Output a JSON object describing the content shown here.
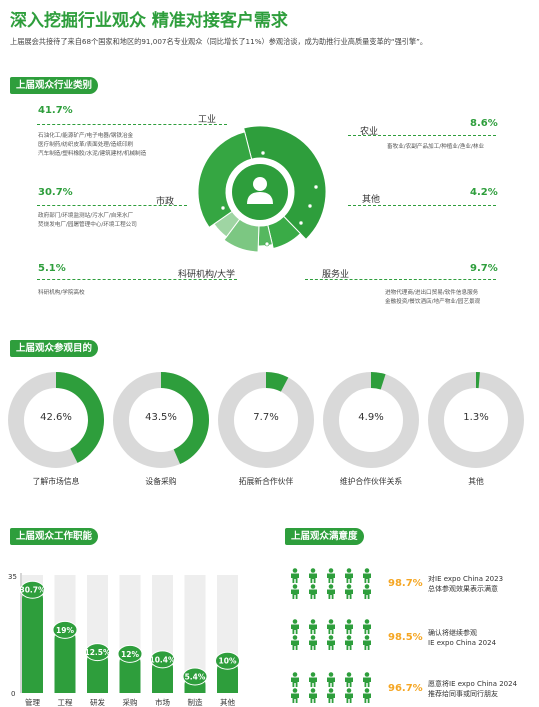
{
  "header": {
    "title": "深入挖掘行业观众 精准对接客户需求",
    "subtitle": "上届展会共接待了来自68个国家和地区的91,007名专业观众（同比增长了11%）参观洽谈，成为助推行业高质量变革的“强引擎”。"
  },
  "industry": {
    "section_title": "上届观众行业类别",
    "items": [
      {
        "name": "工业",
        "pct": "41.7%",
        "desc": [
          "石油化工/能源矿产/电子电器/钢铁冶金",
          "医疗制药/纺织皮革/表面处理/造纸印刷",
          "汽车制造/塑料橡胶/水泥/建筑建材/机械制造"
        ]
      },
      {
        "name": "市政",
        "pct": "30.7%",
        "desc": [
          "政府部门/环境监测站/污水厂/自来水厂",
          "焚烧发电厂/园屠管理中心/环境工程公司"
        ]
      },
      {
        "name": "科研机构/大学",
        "pct": "5.1%",
        "desc": [
          "科研机构/学院高校"
        ]
      },
      {
        "name": "农业",
        "pct": "8.6%",
        "desc": [
          "畜牧业/农副产品加工/种植业/渔业/林业"
        ]
      },
      {
        "name": "其他",
        "pct": "4.2%",
        "desc": []
      },
      {
        "name": "服务业",
        "pct": "9.7%",
        "desc": [
          "进物代理商/进出口贸易/软件信息服务",
          "金融投资/餐饮酒店/地产物业/园艺景观"
        ]
      }
    ]
  },
  "purpose": {
    "section_title": "上届观众参观目的",
    "items": [
      {
        "label": "了解市场信息",
        "pct_text": "42.6%",
        "value": 42.6
      },
      {
        "label": "设备采购",
        "pct_text": "43.5%",
        "value": 43.5
      },
      {
        "label": "拓展新合作伙伴",
        "pct_text": "7.7%",
        "value": 7.7
      },
      {
        "label": "维护合作伙伴关系",
        "pct_text": "4.9%",
        "value": 4.9
      },
      {
        "label": "其他",
        "pct_text": "1.3%",
        "value": 1.3
      }
    ]
  },
  "chart_data": {
    "type": "bar",
    "title": "上届观众工作职能",
    "categories": [
      "管理",
      "工程",
      "研发",
      "采购",
      "市场",
      "制造",
      "其他"
    ],
    "values": [
      30.7,
      19,
      12.5,
      12,
      10.4,
      5.4,
      10
    ],
    "value_labels": [
      "30.7%",
      "19%",
      "12.5%",
      "12%",
      "10.4%",
      "5.4%",
      "10%"
    ],
    "ylim": [
      0,
      35
    ],
    "yticks": [
      "0",
      "35"
    ],
    "colors": {
      "bar": "#2e9e3c",
      "background": "#eeeeee"
    }
  },
  "satisfaction": {
    "section_title": "上届观众满意度",
    "items": [
      {
        "pct": "98.7%",
        "value": 98.7,
        "line1": "对IE expo China 2023",
        "line2": "总体参观效果表示满意"
      },
      {
        "pct": "98.5%",
        "value": 98.5,
        "line1": "确认将继续参观",
        "line2": "IE expo China 2024"
      },
      {
        "pct": "96.7%",
        "value": 96.7,
        "line1": "愿意将IE expo China 2024",
        "line2": "推荐给同事或同行朋友"
      }
    ]
  },
  "colors": {
    "brand_green": "#2e9e3c",
    "accent_orange": "#f5a623",
    "light_gray": "#d9d9d9"
  }
}
